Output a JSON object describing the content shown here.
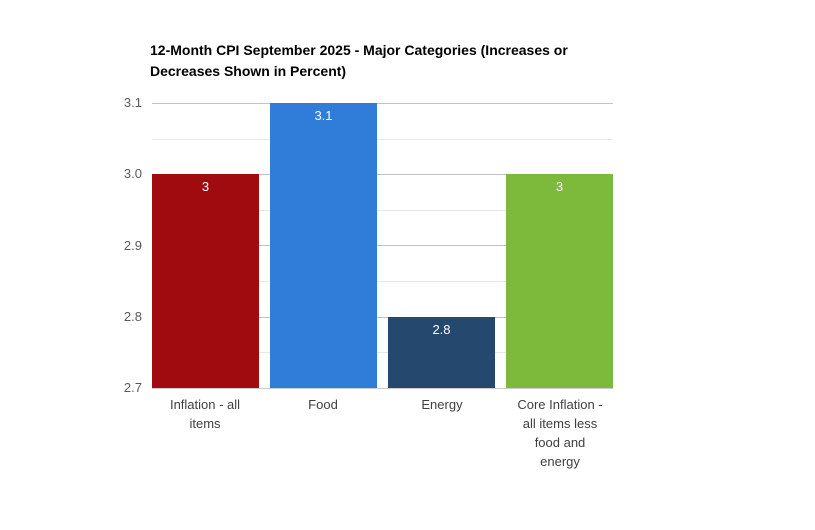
{
  "chart_data": {
    "type": "bar",
    "title": "12-Month CPI September 2025 - Major Categories (Increases or Decreases Shown in Percent)",
    "title_lines": [
      "12-Month CPI September 2025 - Major Categories (Increases or",
      "Decreases Shown in Percent)"
    ],
    "categories": [
      "Inflation - all items",
      "Food",
      "Energy",
      "Core Inflation - all items less food and energy"
    ],
    "category_lines": [
      [
        "Inflation - all",
        "items"
      ],
      [
        "Food"
      ],
      [
        "Energy"
      ],
      [
        "Core Inflation -",
        "all items less",
        "food and",
        "energy"
      ]
    ],
    "values": [
      3,
      3.1,
      2.8,
      3
    ],
    "value_labels": [
      "3",
      "3.1",
      "2.8",
      "3"
    ],
    "bar_colors": [
      "#a00b10",
      "#2f7dd8",
      "#24486e",
      "#7dba3c"
    ],
    "ylim": [
      2.7,
      3.1
    ],
    "yticks": [
      3.1,
      3.0,
      2.9,
      2.8,
      2.7
    ],
    "ytick_labels": [
      "3.1",
      "3.0",
      "2.9",
      "2.8",
      "2.7"
    ],
    "minor_tick_interval": 0.05,
    "grid": true,
    "legend": false,
    "xlabel": "",
    "ylabel": ""
  },
  "colors": {
    "title": "#000000",
    "axis_label": "#595959",
    "category_label": "#3f3f3f",
    "value_label": "#ffffff",
    "major_gridline": "#c3c3c3",
    "minor_gridline": "#e8e8e8",
    "baseline": "#cccccc",
    "background": "#ffffff"
  }
}
